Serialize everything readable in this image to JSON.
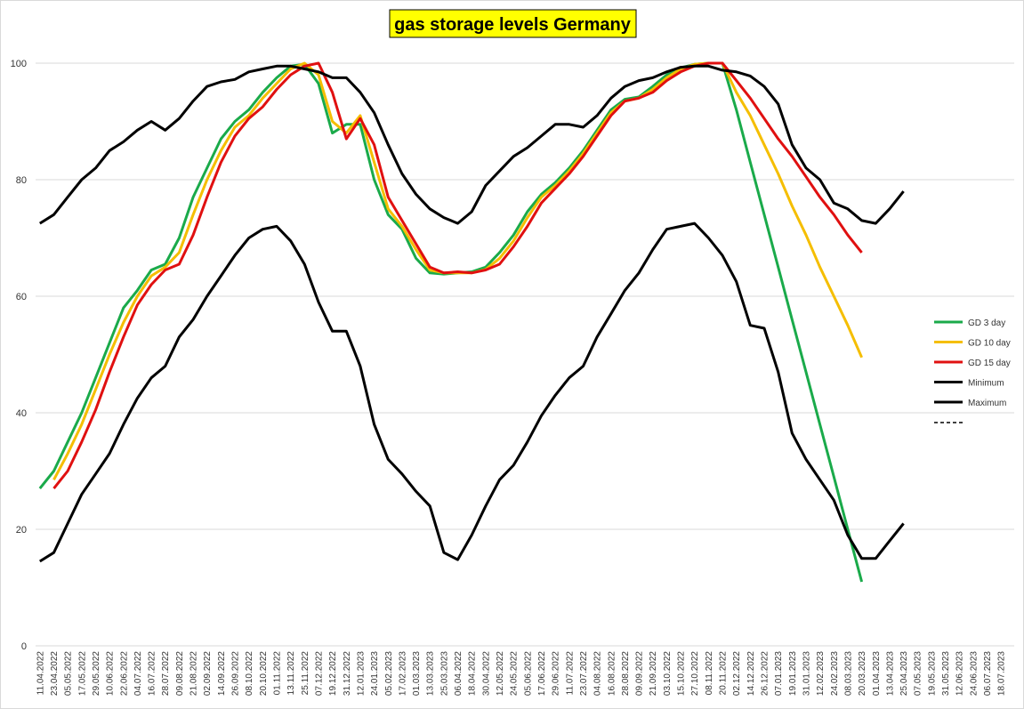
{
  "chart_data": {
    "type": "line",
    "title": "gas storage levels Germany",
    "categories": [
      "11.04.2022",
      "23.04.2022",
      "05.05.2022",
      "17.05.2022",
      "29.05.2022",
      "10.06.2022",
      "22.06.2022",
      "04.07.2022",
      "16.07.2022",
      "28.07.2022",
      "09.08.2022",
      "21.08.2022",
      "02.09.2022",
      "14.09.2022",
      "26.09.2022",
      "08.10.2022",
      "20.10.2022",
      "01.11.2022",
      "13.11.2022",
      "25.11.2022",
      "07.12.2022",
      "19.12.2022",
      "31.12.2022",
      "12.01.2023",
      "24.01.2023",
      "05.02.2023",
      "17.02.2023",
      "01.03.2023",
      "13.03.2023",
      "25.03.2023",
      "06.04.2022",
      "18.04.2022",
      "30.04.2022",
      "12.05.2022",
      "24.05.2022",
      "05.06.2022",
      "17.06.2022",
      "29.06.2022",
      "11.07.2022",
      "23.07.2022",
      "04.08.2022",
      "16.08.2022",
      "28.08.2022",
      "09.09.2022",
      "21.09.2022",
      "03.10.2022",
      "15.10.2022",
      "27.10.2022",
      "08.11.2022",
      "20.11.2022",
      "02.12.2022",
      "14.12.2022",
      "26.12.2022",
      "07.01.2023",
      "19.01.2023",
      "31.01.2023",
      "12.02.2023",
      "24.02.2023",
      "08.03.2023",
      "20.03.2023",
      "01.04.2023",
      "13.04.2023",
      "25.04.2023",
      "07.05.2023",
      "19.05.2023",
      "31.05.2023",
      "12.06.2023",
      "24.06.2023",
      "06.07.2023",
      "18.07.2023"
    ],
    "series": [
      {
        "name": "GD 3 day",
        "color": "#1aaa4a",
        "values": [
          27,
          30,
          35,
          40,
          46,
          52,
          58,
          61,
          64.5,
          65.5,
          70,
          77,
          82,
          87,
          90,
          92,
          95,
          97.5,
          99.5,
          99.8,
          96.5,
          88,
          89.5,
          89.5,
          80,
          74,
          71.5,
          66.5,
          64,
          63.8,
          64,
          64.2,
          65,
          67.5,
          70.5,
          74.5,
          77.5,
          79.5,
          82,
          85,
          88.5,
          92,
          93.8,
          94.2,
          96,
          98,
          99.2,
          99.8,
          100,
          100,
          92,
          83,
          74,
          65,
          56,
          47,
          38,
          29,
          20,
          11,
          null,
          null,
          null,
          null,
          null,
          null,
          null,
          null,
          null,
          null
        ]
      },
      {
        "name": "GD 10 day",
        "color": "#f5be00",
        "values": [
          null,
          28.5,
          33,
          38,
          44,
          50,
          55.5,
          60,
          63.5,
          65,
          67.5,
          74,
          80,
          85,
          89,
          91,
          94,
          96.5,
          99,
          100,
          98,
          90,
          88,
          91,
          83,
          75,
          72,
          68,
          64.5,
          64,
          64,
          64,
          64.6,
          66.5,
          69.5,
          73.5,
          77,
          79,
          81.5,
          84.5,
          88,
          91.5,
          93.5,
          94,
          95.5,
          97.5,
          99,
          99.8,
          100,
          100,
          95,
          91,
          86,
          81,
          75.5,
          70.5,
          65,
          60,
          55,
          49.5,
          null,
          null,
          null,
          null,
          null,
          null,
          null,
          null,
          null,
          null
        ]
      },
      {
        "name": "GD 15 day",
        "color": "#e01010",
        "values": [
          null,
          27,
          30,
          35,
          40.5,
          47,
          53,
          58.5,
          62,
          64.5,
          65.5,
          70.5,
          77,
          83,
          87.5,
          90.5,
          92.5,
          95.5,
          98,
          99.5,
          100,
          95,
          87,
          90.5,
          86,
          77,
          73,
          69,
          65,
          64,
          64.2,
          64,
          64.5,
          65.5,
          68.5,
          72,
          76,
          78.5,
          81,
          84,
          87.5,
          91,
          93.5,
          94,
          95,
          97,
          98.5,
          99.5,
          100,
          100,
          97,
          94,
          90.5,
          87,
          84,
          80.5,
          77,
          74,
          70.5,
          67.5,
          null,
          null,
          null,
          null,
          null,
          null,
          null,
          null,
          null,
          null
        ]
      },
      {
        "name": "Minimum",
        "color": "#000000",
        "values": [
          14.5,
          16,
          21,
          26,
          29.5,
          33,
          38,
          42.5,
          46,
          48,
          53,
          56,
          60,
          63.5,
          67,
          70,
          71.5,
          72,
          69.5,
          65.5,
          59,
          54,
          54,
          48,
          38,
          32,
          29.5,
          26.5,
          24,
          16,
          14.8,
          19,
          24,
          28.5,
          31,
          35,
          39.5,
          43,
          46,
          48,
          53,
          57,
          61,
          64,
          68,
          71.5,
          72,
          72.5,
          70,
          67,
          62.5,
          55,
          54.5,
          47,
          36.5,
          32,
          28.5,
          25,
          19,
          15,
          15,
          18,
          21,
          null,
          null,
          null,
          null,
          null,
          null,
          null
        ]
      },
      {
        "name": "Maximum",
        "color": "#000000",
        "values": [
          72.5,
          74,
          77,
          80,
          82,
          85,
          86.5,
          88.5,
          90,
          88.5,
          90.5,
          93.5,
          96,
          96.8,
          97.2,
          98.5,
          99,
          99.5,
          99.5,
          99,
          98.5,
          97.5,
          97.5,
          95,
          91.5,
          86,
          81,
          77.5,
          75,
          73.5,
          72.5,
          74.5,
          79,
          81.5,
          84,
          85.5,
          87.5,
          89.5,
          89.5,
          89,
          91,
          94,
          96,
          97,
          97.5,
          98.5,
          99.3,
          99.5,
          99.5,
          98.8,
          98.5,
          97.8,
          96,
          93,
          86,
          82,
          80,
          76,
          75,
          73,
          72.5,
          75,
          78,
          null,
          null,
          null,
          null,
          null,
          null,
          null
        ]
      }
    ],
    "ylim": [
      0,
      100
    ],
    "yticks": [
      0,
      20,
      40,
      60,
      80,
      100
    ],
    "grid": true,
    "legend": "right"
  }
}
